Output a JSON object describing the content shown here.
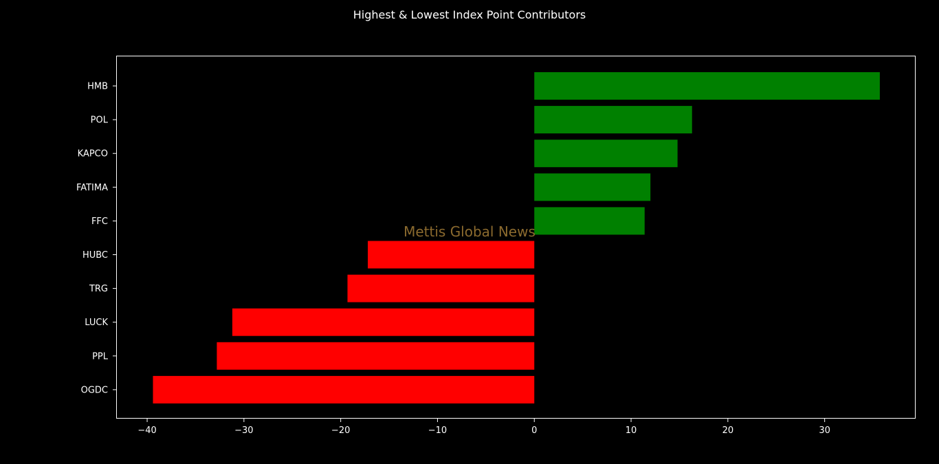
{
  "colors": {
    "background": "#000000",
    "axes": "#ffffff",
    "positive": "#008000",
    "negative": "#ff0000",
    "watermark": "#8b6a2e"
  },
  "watermark": "Mettis Global News",
  "chart_data": {
    "type": "bar",
    "orientation": "horizontal",
    "title": "Highest & Lowest Index Point Contributors",
    "xlabel": "",
    "ylabel": "",
    "xlim": [
      -43.2,
      39.4
    ],
    "xticks": [
      -40,
      -30,
      -20,
      -10,
      0,
      10,
      20,
      30
    ],
    "xtick_labels": [
      "−40",
      "−30",
      "−20",
      "−10",
      "0",
      "10",
      "20",
      "30"
    ],
    "grid": false,
    "legend": "none",
    "categories": [
      "HMB",
      "POL",
      "KAPCO",
      "FATIMA",
      "FFC",
      "HUBC",
      "TRG",
      "LUCK",
      "PPL",
      "OGDC"
    ],
    "values": [
      35.7,
      16.3,
      14.8,
      12.0,
      11.4,
      -17.2,
      -19.3,
      -31.2,
      -32.8,
      -39.4
    ]
  }
}
